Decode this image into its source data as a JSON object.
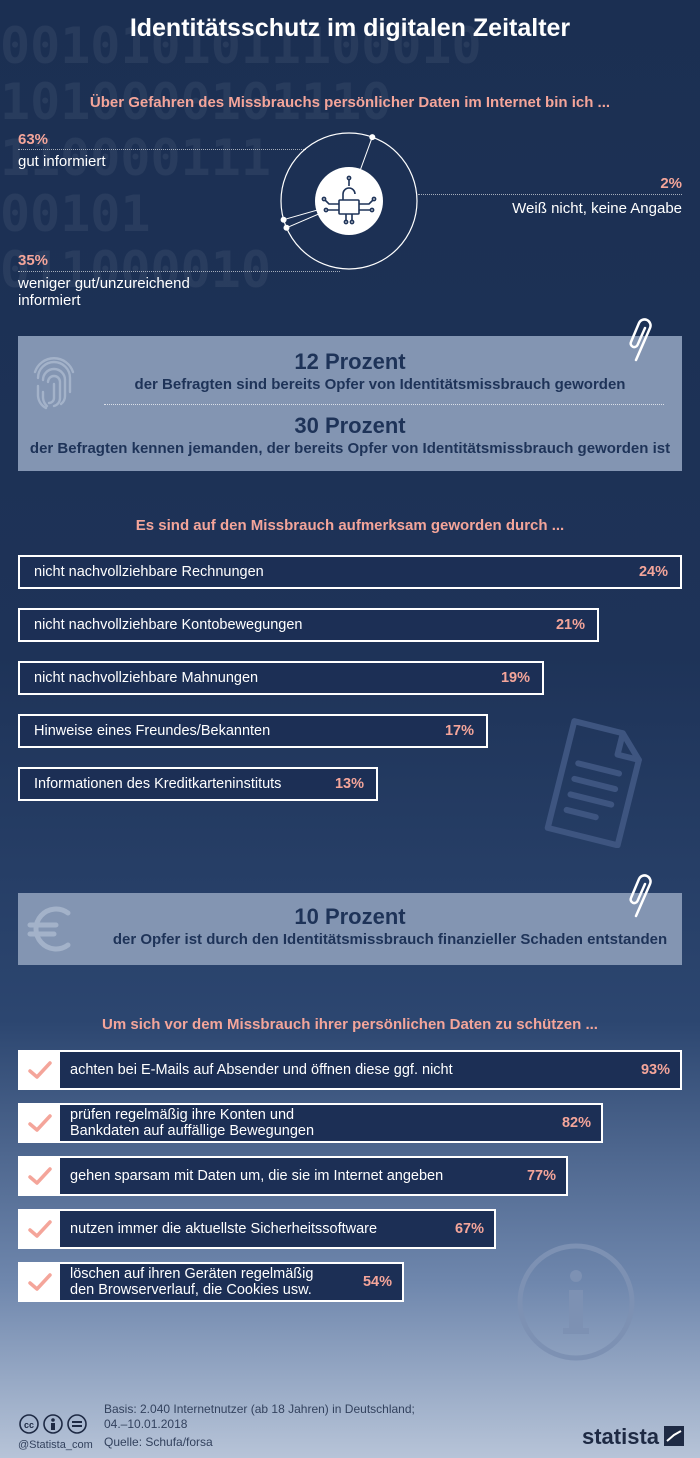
{
  "title": "Identitätsschutz im digitalen Zeitalter",
  "binary_bg": "0010101011100010\n1010000101110\n110000111\n00101\n011000010",
  "q1": {
    "question": "Über Gefahren des Missbrauchs persönlicher Daten im Internet bin ich ...",
    "items": [
      {
        "pct": "63%",
        "label": "gut informiert"
      },
      {
        "pct": "2%",
        "label": "Weiß nicht, keine Angabe"
      },
      {
        "pct": "35%",
        "label_line1": "weniger gut/unzureichend",
        "label_line2": "informiert"
      }
    ],
    "center_icon": "lock-circuit-icon"
  },
  "box1": {
    "stat1": "12 Prozent",
    "desc1": "der Befragten sind bereits Opfer von Identitätsmissbrauch geworden",
    "stat2": "30 Prozent",
    "desc2": "der Befragten kennen jemanden, der bereits Opfer von Identitätsmissbrauch geworden ist",
    "icons": [
      "fingerprint-icon",
      "paperclip-icon"
    ]
  },
  "q2": {
    "question": "Es sind auf den Missbrauch aufmerksam geworden durch ..."
  },
  "box2": {
    "stat": "10 Prozent",
    "desc": "der Opfer ist durch den Identitätsmissbrauch finanzieller Schaden entstanden",
    "icons": [
      "euro-icon",
      "paperclip-icon"
    ]
  },
  "q3": {
    "question": "Um sich vor dem Missbrauch ihrer persönlichen Daten zu schützen ..."
  },
  "chart_data": [
    {
      "type": "pie",
      "title": "Über Gefahren des Missbrauchs persönlicher Daten im Internet bin ich ...",
      "categories": [
        "gut informiert",
        "Weiß nicht, keine Angabe",
        "weniger gut/unzureichend informiert"
      ],
      "values": [
        63,
        2,
        35
      ],
      "unit": "%"
    },
    {
      "type": "bar",
      "title": "Es sind auf den Missbrauch aufmerksam geworden durch ...",
      "categories": [
        "nicht nachvollziehbare Rechnungen",
        "nicht nachvollziehbare Kontobewegungen",
        "nicht nachvollziehbare Mahnungen",
        "Hinweise eines Freundes/Bekannten",
        "Informationen des Kreditkarteninstituts"
      ],
      "values": [
        24,
        21,
        19,
        17,
        13
      ],
      "value_labels": [
        "24%",
        "21%",
        "19%",
        "17%",
        "13%"
      ],
      "unit": "%"
    },
    {
      "type": "bar",
      "title": "Um sich vor dem Missbrauch ihrer persönlichen Daten zu schützen ...",
      "categories": [
        [
          "achten bei E-Mails auf Absender und öffnen diese ggf. nicht"
        ],
        [
          "prüfen regelmäßig ihre Konten und",
          "Bankdaten auf auffällige Bewegungen"
        ],
        [
          "gehen sparsam mit Daten um, die sie im Internet angeben"
        ],
        [
          "nutzen immer die aktuellste Sicherheitssoftware"
        ],
        [
          "löschen auf ihren Geräten regelmäßig",
          "den Browserverlauf, die Cookies usw."
        ]
      ],
      "values": [
        93,
        82,
        77,
        67,
        54
      ],
      "value_labels": [
        "93%",
        "82%",
        "77%",
        "67%",
        "54%"
      ],
      "unit": "%",
      "icon": "checkmark-icon"
    }
  ],
  "footer": {
    "basis_line1": "Basis: 2.040 Internetnutzer (ab 18 Jahren) in Deutschland;",
    "basis_line2": "04.–10.01.2018",
    "source": "Quelle: Schufa/forsa",
    "handle": "@Statista_com",
    "brand": "statista",
    "license_icons": [
      "cc-icon",
      "by-icon",
      "nd-icon"
    ]
  },
  "colors": {
    "background": "#1e3358",
    "accent": "#f4a59a",
    "box": "#8395b2",
    "text": "#ffffff"
  }
}
